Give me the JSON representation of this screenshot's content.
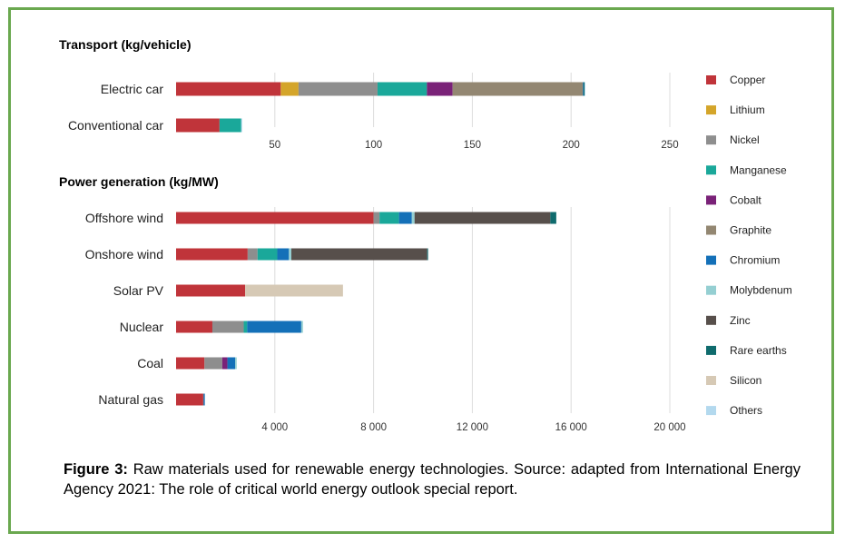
{
  "colors": {
    "Copper": "#c0343a",
    "Lithium": "#d4a52a",
    "Nickel": "#8e8e8e",
    "Manganese": "#1aa89a",
    "Cobalt": "#7a2278",
    "Graphite": "#938772",
    "Chromium": "#1470b8",
    "Molybdenum": "#95cfd2",
    "Zinc": "#574f4b",
    "Rare earths": "#0f6b6d",
    "Silicon": "#d6c9b5",
    "Others": "#b3d9ee"
  },
  "chart_data": [
    {
      "type": "bar",
      "orientation": "horizontal",
      "stacked": true,
      "title": "Transport (kg/vehicle)",
      "categories": [
        "Electric car",
        "Conventional car"
      ],
      "xlim": [
        0,
        250
      ],
      "xticks": [
        50,
        100,
        150,
        200,
        250
      ],
      "series": [
        {
          "name": "Copper",
          "values": [
            53,
            22
          ]
        },
        {
          "name": "Lithium",
          "values": [
            9,
            0
          ]
        },
        {
          "name": "Nickel",
          "values": [
            40,
            0
          ]
        },
        {
          "name": "Manganese",
          "values": [
            25,
            11
          ]
        },
        {
          "name": "Cobalt",
          "values": [
            13,
            0
          ]
        },
        {
          "name": "Graphite",
          "values": [
            66,
            0
          ]
        },
        {
          "name": "Chromium",
          "values": [
            0.3,
            0
          ]
        },
        {
          "name": "Molybdenum",
          "values": [
            0,
            0
          ]
        },
        {
          "name": "Zinc",
          "values": [
            0,
            0
          ]
        },
        {
          "name": "Rare earths",
          "values": [
            0.5,
            0
          ]
        },
        {
          "name": "Silicon",
          "values": [
            0,
            0
          ]
        },
        {
          "name": "Others",
          "values": [
            0.3,
            0.3
          ]
        }
      ]
    },
    {
      "type": "bar",
      "orientation": "horizontal",
      "stacked": true,
      "title": "Power generation (kg/MW)",
      "categories": [
        "Offshore wind",
        "Onshore wind",
        "Solar PV",
        "Nuclear",
        "Coal",
        "Natural gas"
      ],
      "xlim": [
        0,
        20000
      ],
      "xticks": [
        "4 000",
        "8 000",
        "12 000",
        "16 000",
        "20 000"
      ],
      "series": [
        {
          "name": "Copper",
          "values": [
            8000,
            2900,
            2800,
            1470,
            1150,
            1100
          ]
        },
        {
          "name": "Lithium",
          "values": [
            0,
            0,
            0,
            0,
            0,
            0
          ]
        },
        {
          "name": "Nickel",
          "values": [
            240,
            400,
            0,
            1270,
            720,
            16
          ]
        },
        {
          "name": "Manganese",
          "values": [
            790,
            800,
            0,
            140,
            0,
            0
          ]
        },
        {
          "name": "Cobalt",
          "values": [
            0,
            0,
            0,
            0,
            210,
            0
          ]
        },
        {
          "name": "Graphite",
          "values": [
            0,
            0,
            0,
            0,
            0,
            0
          ]
        },
        {
          "name": "Chromium",
          "values": [
            520,
            470,
            0,
            2190,
            310,
            48
          ]
        },
        {
          "name": "Molybdenum",
          "values": [
            110,
            100,
            0,
            70,
            66,
            0
          ]
        },
        {
          "name": "Zinc",
          "values": [
            5500,
            5500,
            0,
            0,
            0,
            0
          ]
        },
        {
          "name": "Rare earths",
          "values": [
            240,
            14,
            0,
            0,
            0,
            0
          ]
        },
        {
          "name": "Silicon",
          "values": [
            0,
            0,
            3960,
            0,
            0,
            0
          ]
        },
        {
          "name": "Others",
          "values": [
            0,
            0,
            0,
            0,
            0,
            0
          ]
        }
      ]
    }
  ],
  "legend": [
    "Copper",
    "Lithium",
    "Nickel",
    "Manganese",
    "Cobalt",
    "Graphite",
    "Chromium",
    "Molybdenum",
    "Zinc",
    "Rare earths",
    "Silicon",
    "Others"
  ],
  "caption": {
    "label": "Figure 3:",
    "text": " Raw materials used for renewable energy technologies. Source: adapted from International Energy Agency 2021: The role of critical world energy outlook special report."
  }
}
